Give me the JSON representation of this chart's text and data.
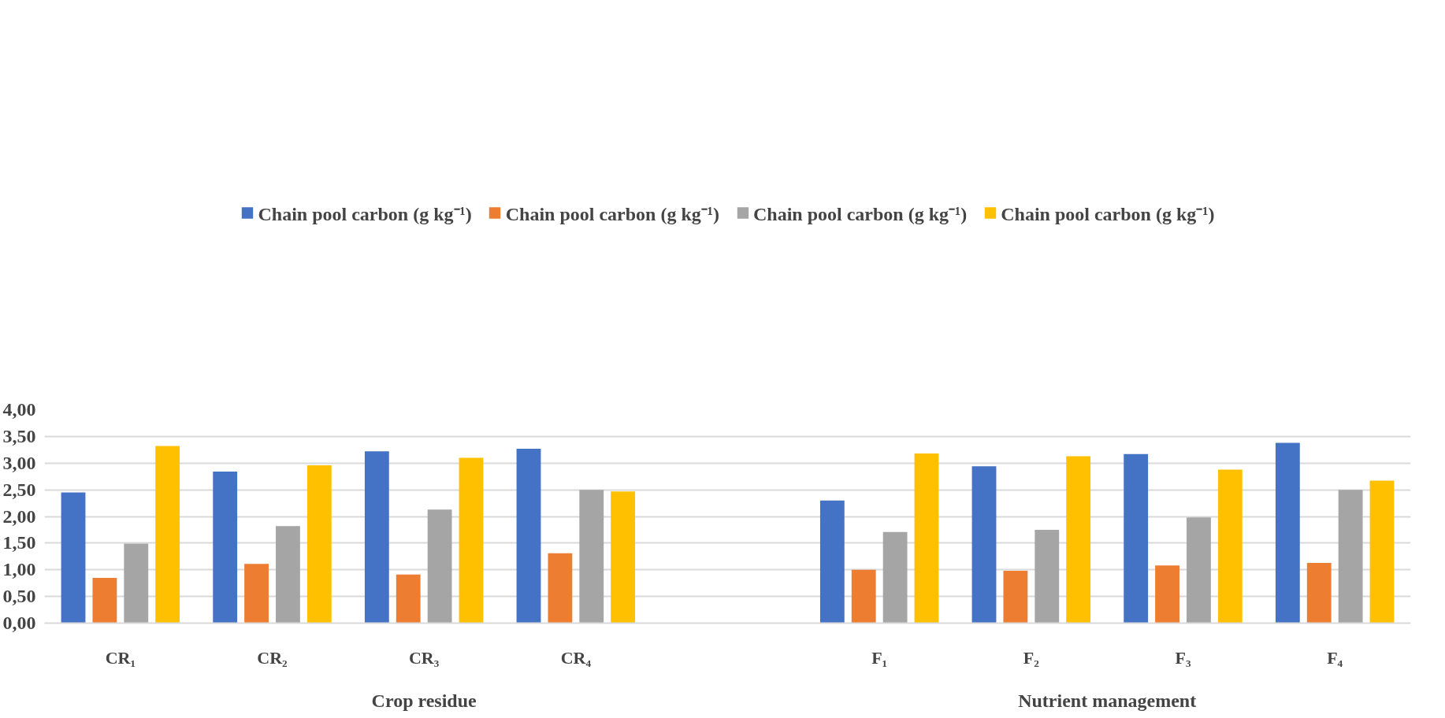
{
  "chart_data": {
    "type": "bar",
    "categories": [
      "CR₁",
      "CR₂",
      "CR₃",
      "CR₄",
      null,
      "F₁",
      "F₂",
      "F₃",
      "F₄"
    ],
    "series": [
      {
        "name": "Chain pool carbon (g kg⁻¹)",
        "color": "#4472c4",
        "values": [
          2.45,
          2.84,
          3.22,
          3.27,
          null,
          2.3,
          2.94,
          3.17,
          3.38
        ]
      },
      {
        "name": "Chain pool carbon (g kg⁻¹)",
        "color": "#ed7d31",
        "values": [
          0.85,
          1.11,
          0.91,
          1.31,
          null,
          1.0,
          0.98,
          1.08,
          1.13
        ]
      },
      {
        "name": "Chain pool carbon (g kg⁻¹)",
        "color": "#a5a5a5",
        "values": [
          1.49,
          1.82,
          2.13,
          2.5,
          null,
          1.71,
          1.75,
          1.98,
          2.5
        ]
      },
      {
        "name": "Chain pool carbon (g kg⁻¹)",
        "color": "#ffc000",
        "values": [
          3.32,
          2.96,
          3.1,
          2.47,
          null,
          3.18,
          3.13,
          2.88,
          2.67
        ]
      }
    ],
    "annotations": [
      "Crop residue",
      "Nutrient management"
    ],
    "ylim": [
      0,
      4
    ],
    "yticks": [
      {
        "value": 0,
        "label": "0,00"
      },
      {
        "value": 0.5,
        "label": "0,50"
      },
      {
        "value": 1,
        "label": "1,00"
      },
      {
        "value": 1.5,
        "label": "1,50"
      },
      {
        "value": 2,
        "label": "2,00"
      },
      {
        "value": 2.5,
        "label": "2,50"
      },
      {
        "value": 3,
        "label": "3,00"
      },
      {
        "value": 3.5,
        "label": "3,50"
      },
      {
        "value": 4,
        "label": "4,00"
      }
    ],
    "grid": "y",
    "legend": "top"
  }
}
